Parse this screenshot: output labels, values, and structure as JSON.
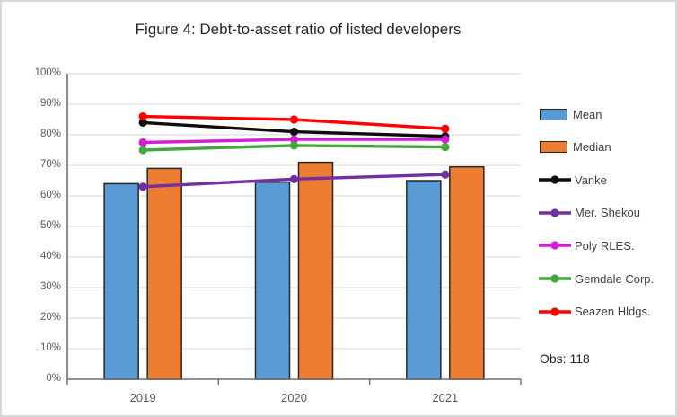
{
  "chart_data": {
    "type": "combo",
    "title": "Figure 4: Debt-to-asset ratio of listed developers",
    "categories": [
      "2019",
      "2020",
      "2021"
    ],
    "y_ticks": [
      "0%",
      "10%",
      "20%",
      "30%",
      "40%",
      "50%",
      "60%",
      "70%",
      "80%",
      "90%",
      "100%"
    ],
    "ylim": [
      0,
      100
    ],
    "grid": true,
    "legend_position": "right",
    "note": "Obs: 118",
    "bar_series": [
      {
        "name": "Mean",
        "color": "#5B9BD5",
        "values": [
          64,
          64.5,
          65
        ]
      },
      {
        "name": "Median",
        "color": "#ED7D31",
        "values": [
          69,
          71,
          69.5
        ]
      }
    ],
    "line_series": [
      {
        "name": "Vanke",
        "color": "#0d0d0d",
        "values": [
          84,
          81,
          79.5
        ]
      },
      {
        "name": "Mer. Shekou",
        "color": "#7030A0",
        "values": [
          63,
          65.5,
          67
        ]
      },
      {
        "name": "Poly RLES.",
        "color": "#D41ED4",
        "values": [
          77.5,
          78.5,
          78.5
        ]
      },
      {
        "name": "Gemdale Corp.",
        "color": "#44A83E",
        "values": [
          75,
          76.5,
          76
        ]
      },
      {
        "name": "Seazen Hldgs.",
        "color": "#FE0000",
        "values": [
          86,
          85,
          82
        ]
      }
    ],
    "colors": {
      "grid": "#D9D9D9",
      "axis": "#6E6E6E",
      "bar_border": "#262626",
      "background": "#FFFFFF",
      "frame_border": "#D9D9D9"
    }
  }
}
